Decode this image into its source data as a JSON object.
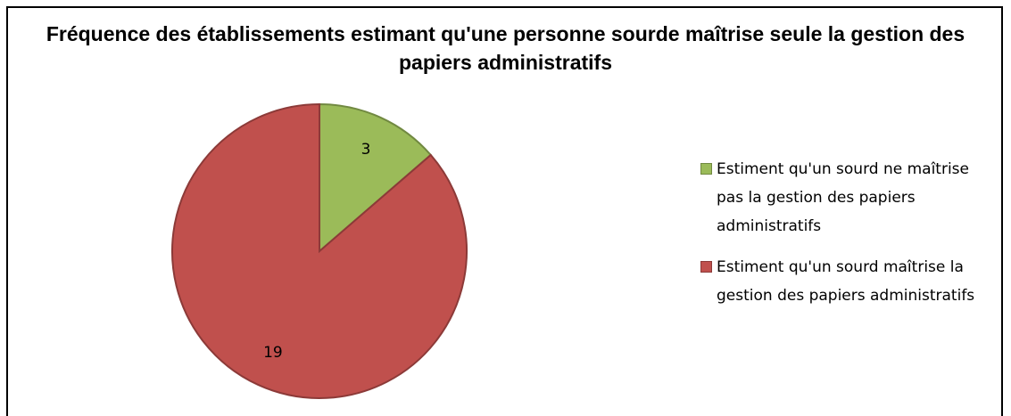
{
  "chart_data": {
    "type": "pie",
    "title": "Fréquence des établissements estimant qu'une personne sourde maîtrise seule la gestion des papiers administratifs",
    "categories": [
      "Estiment qu'un sourd ne maîtrise pas la gestion des papiers administratifs",
      "Estiment qu'un sourd maîtrise la gestion des papiers administratifs"
    ],
    "values": [
      3,
      19
    ],
    "colors": [
      "#9bbb59",
      "#c0504d"
    ],
    "legend": "right"
  }
}
